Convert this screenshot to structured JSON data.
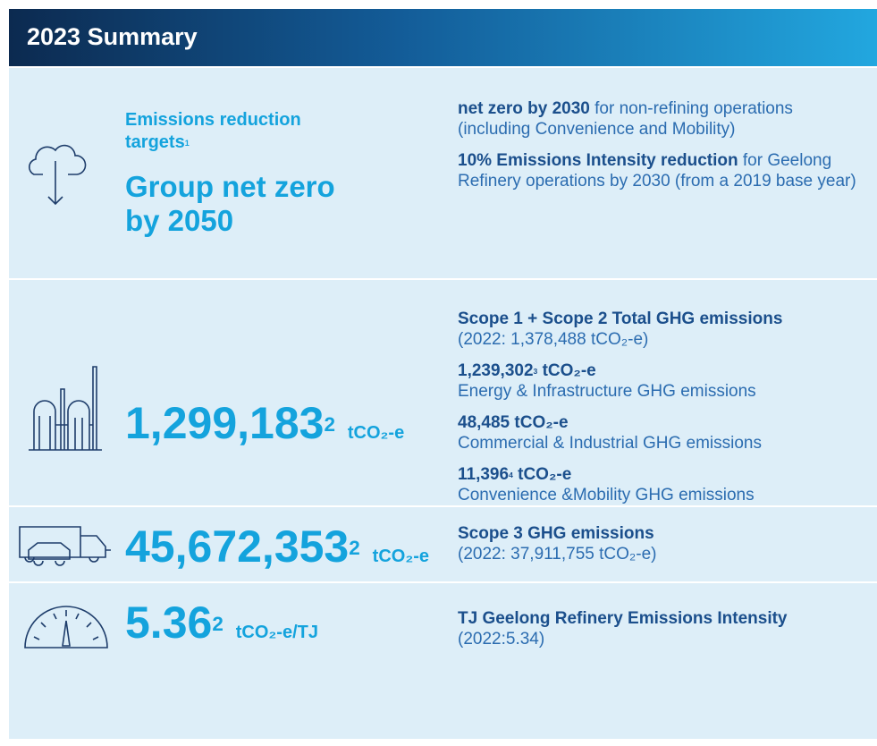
{
  "header": {
    "title": "2023 Summary"
  },
  "rows": [
    {
      "label": "Emissions reduction targets",
      "label_note": "1",
      "headline": "Group net zero by 2050",
      "details": [
        {
          "strong": "net zero by 2030",
          "text": "for non-refining operations (including Convenience and Mobility)"
        },
        {
          "strong": "10% Emissions Intensity reduction",
          "text": "for Geelong Refinery operations by 2030 (from a 2019 base year)"
        }
      ]
    },
    {
      "value": "1,299,183",
      "note": "2",
      "unit": "tCO₂-e",
      "details": [
        {
          "strong": "Scope 1 + Scope 2 Total GHG emissions",
          "text": "(2022: 1,378,488 tCO₂-e)"
        },
        {
          "strong": "1,239,302",
          "note": "3",
          "unit": "tCO₂-e",
          "text": "Energy & Infrastructure GHG emissions"
        },
        {
          "strong": "48,485",
          "unit": "tCO₂-e",
          "text": "Commercial & Industrial GHG emissions"
        },
        {
          "strong": "11,396",
          "note": "4",
          "unit": "tCO₂-e",
          "text": "Convenience &Mobility GHG emissions"
        }
      ]
    },
    {
      "value": "45,672,353",
      "note": "2",
      "unit": "tCO₂-e",
      "details": [
        {
          "strong": "Scope 3 GHG emissions",
          "text": "(2022: 37,911,755 tCO₂-e)"
        }
      ]
    },
    {
      "value": "5.36",
      "note": "2",
      "unit": "tCO₂-e/TJ",
      "details": [
        {
          "strong": "TJ Geelong Refinery Emissions Intensity",
          "text": "(2022:5.34)"
        }
      ]
    }
  ]
}
